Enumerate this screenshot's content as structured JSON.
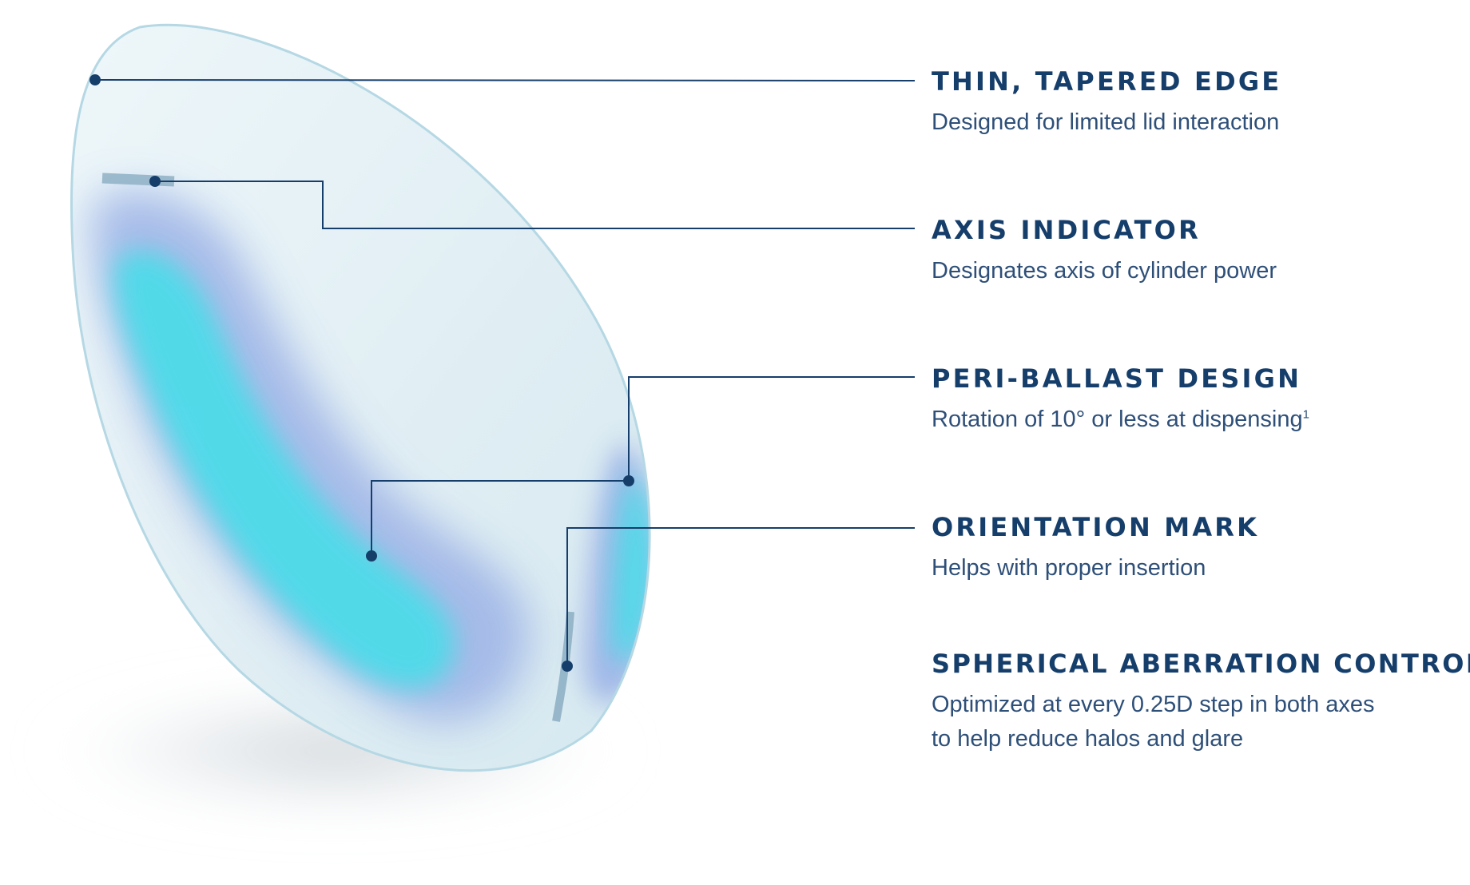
{
  "features": [
    {
      "title": "THIN, TAPERED EDGE",
      "description": [
        "Designed for limited lid interaction"
      ]
    },
    {
      "title": "AXIS INDICATOR",
      "description": [
        "Designates axis of cylinder power"
      ]
    },
    {
      "title": "PERI-BALLAST DESIGN",
      "description": [
        "Rotation of 10° or less at dispensing"
      ],
      "footnote": "1"
    },
    {
      "title": "ORIENTATION MARK",
      "description": [
        "Helps with proper insertion"
      ]
    },
    {
      "title": "SPHERICAL ABERRATION CONTROL",
      "description": [
        "Optimized at every 0.25D step in both axes",
        "to help reduce halos and glare"
      ]
    }
  ],
  "colors": {
    "title_text": "#163e6b",
    "body_text": "#2e4f78",
    "leader_line": "#163e6b",
    "lens_base": "#e3f1f5",
    "lens_rim": "#b5d8e4",
    "ballast_cyan": "#4ddbe9",
    "ballast_blue": "#9cb2e6",
    "marker_gray": "#8fb0c4"
  }
}
